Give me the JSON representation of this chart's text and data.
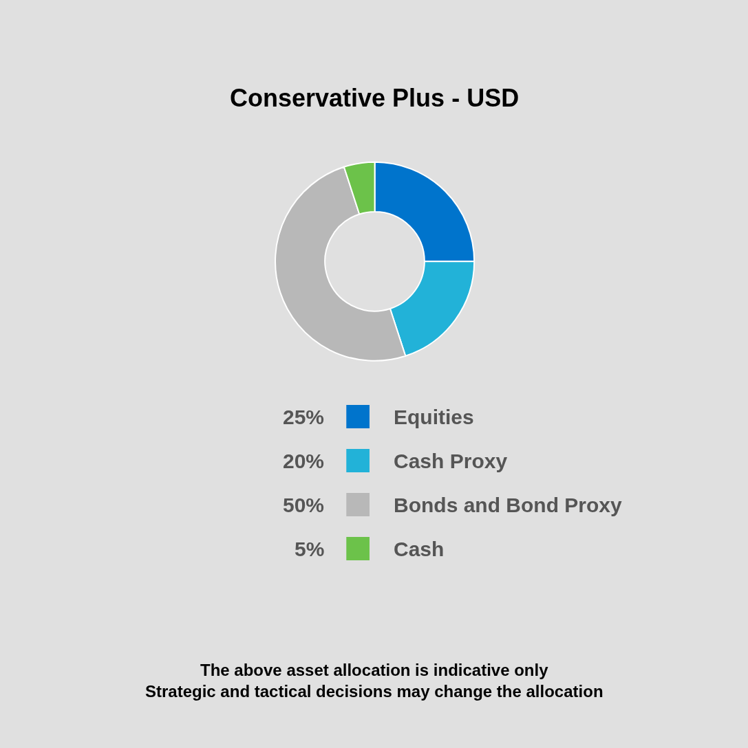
{
  "chart_data": {
    "type": "donut",
    "title": "Conservative Plus - USD",
    "categories": [
      "Equities",
      "Cash Proxy",
      "Bonds and Bond Proxy",
      "Cash"
    ],
    "values": [
      25,
      20,
      50,
      5
    ],
    "colors": [
      "#0074cc",
      "#22b2d8",
      "#b8b8b8",
      "#6cc24a"
    ],
    "value_labels": [
      "25%",
      "20%",
      "50%",
      "5%"
    ],
    "legend": "bottom",
    "annotations": [
      "The above asset allocation is indicative only\nStrategic and tactical decisions may change the allocation"
    ]
  }
}
